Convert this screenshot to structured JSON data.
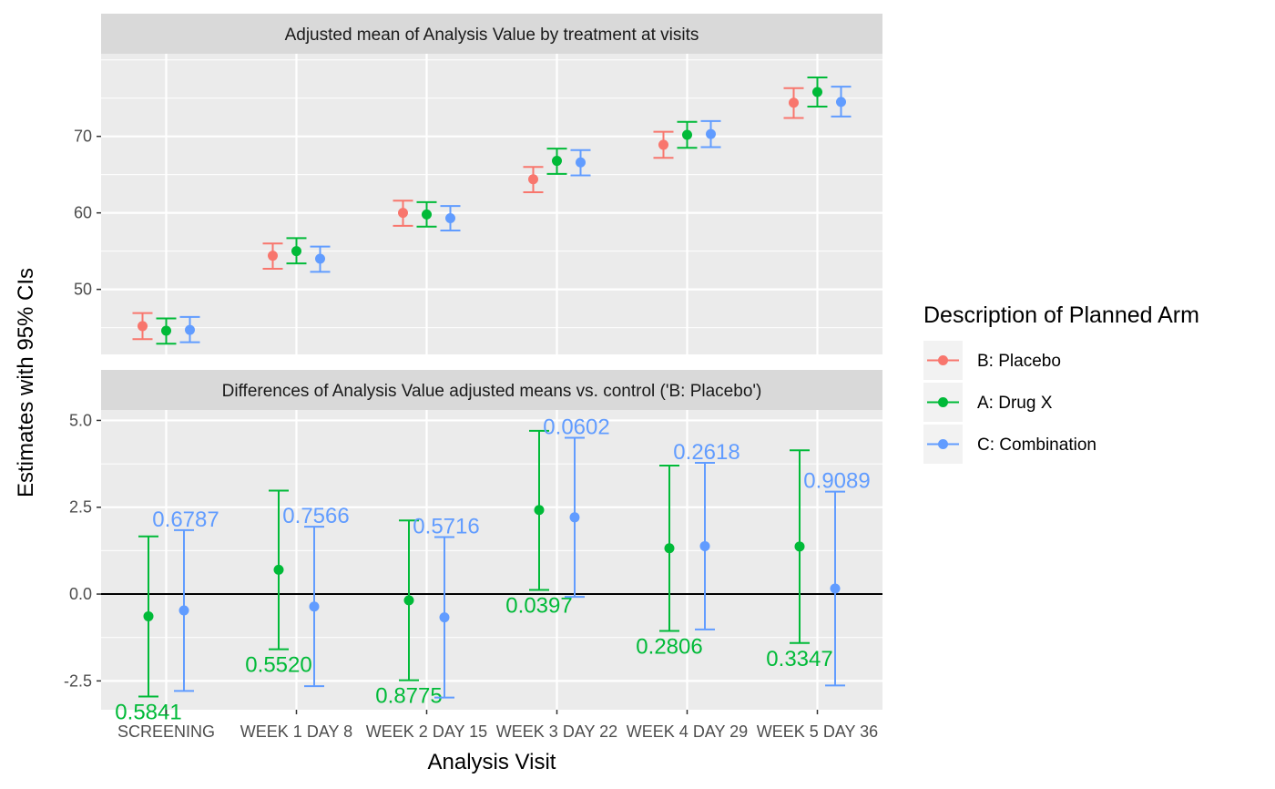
{
  "chart_data": {
    "type": "scatter",
    "ylabel": "Estimates with 95% CIs",
    "xlabel": "Analysis Visit",
    "categories": [
      "SCREENING",
      "WEEK 1 DAY 8",
      "WEEK 2 DAY 15",
      "WEEK 3 DAY 22",
      "WEEK 4 DAY 29",
      "WEEK 5 DAY 36"
    ],
    "legend": {
      "title": "Description of Planned Arm",
      "placement": "right",
      "entries": [
        {
          "name": "B: Placebo",
          "color": "#F8766D"
        },
        {
          "name": "A: Drug X",
          "color": "#00BA38"
        },
        {
          "name": "C: Combination",
          "color": "#619CFF"
        }
      ]
    },
    "panels": [
      {
        "title": "Adjusted mean of Analysis Value by treatment at visits",
        "ylim": [
          41.5,
          80.8
        ],
        "yticks": [
          50,
          60,
          70
        ],
        "grid": true,
        "series": [
          {
            "name": "B: Placebo",
            "color": "#F8766D",
            "estimates": [
              45.2,
              54.4,
              60.0,
              64.4,
              68.9,
              74.4
            ],
            "lower": [
              43.5,
              52.7,
              58.3,
              62.7,
              67.2,
              72.4
            ],
            "upper": [
              46.9,
              56.0,
              61.6,
              66.0,
              70.6,
              76.3
            ]
          },
          {
            "name": "A: Drug X",
            "color": "#00BA38",
            "estimates": [
              44.6,
              55.0,
              59.8,
              66.8,
              70.2,
              75.8
            ],
            "lower": [
              42.9,
              53.4,
              58.2,
              65.1,
              68.5,
              73.9
            ],
            "upper": [
              46.2,
              56.7,
              61.4,
              68.4,
              71.9,
              77.7
            ]
          },
          {
            "name": "C: Combination",
            "color": "#619CFF",
            "estimates": [
              44.7,
              54.0,
              59.3,
              66.6,
              70.3,
              74.5
            ],
            "lower": [
              43.1,
              52.3,
              57.7,
              64.9,
              68.6,
              72.6
            ],
            "upper": [
              46.4,
              55.6,
              60.9,
              68.2,
              72.0,
              76.5
            ]
          }
        ]
      },
      {
        "title": "Differences of Analysis Value adjusted means vs. control ('B: Placebo')",
        "ylim": [
          -3.33,
          5.3
        ],
        "yticks": [
          -2.5,
          0.0,
          2.5,
          5.0
        ],
        "ytick_labels": [
          "-2.5",
          "0.0",
          "2.5",
          "5.0"
        ],
        "reference_line": 0,
        "grid": true,
        "series": [
          {
            "name": "A: Drug X",
            "color": "#00BA38",
            "estimates": [
              -0.64,
              0.7,
              -0.18,
              2.42,
              1.32,
              1.37
            ],
            "lower": [
              -2.95,
              -1.59,
              -2.48,
              0.12,
              -1.06,
              -1.41
            ],
            "upper": [
              1.66,
              2.98,
              2.12,
              4.7,
              3.7,
              4.14
            ],
            "p_values": [
              "0.5841",
              "0.5520",
              "0.8775",
              "0.0397",
              "0.2806",
              "0.3347"
            ]
          },
          {
            "name": "C: Combination",
            "color": "#619CFF",
            "estimates": [
              -0.47,
              -0.36,
              -0.67,
              2.21,
              1.38,
              0.16
            ],
            "lower": [
              -2.79,
              -2.65,
              -2.98,
              -0.08,
              -1.02,
              -2.63
            ],
            "upper": [
              1.84,
              1.94,
              1.64,
              4.5,
              3.78,
              2.95
            ],
            "p_values": [
              "0.6787",
              "0.7566",
              "0.5716",
              "0.0602",
              "0.2618",
              "0.9089"
            ]
          }
        ]
      }
    ]
  }
}
